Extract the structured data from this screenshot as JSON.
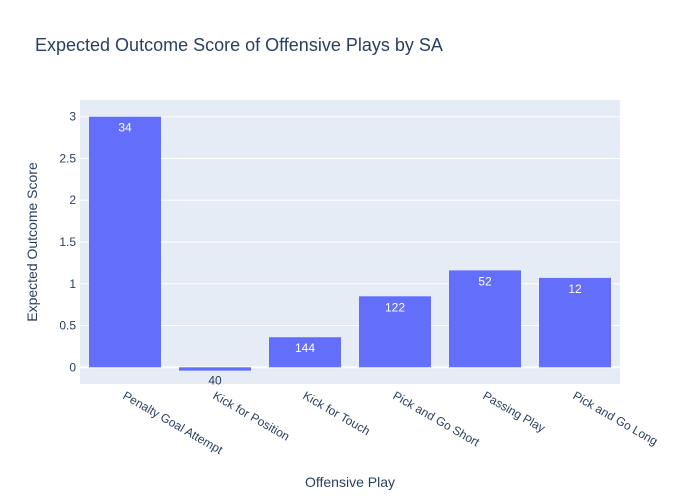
{
  "chart_data": {
    "type": "bar",
    "title": "Expected Outcome Score of Offensive Plays by SA",
    "xlabel": "Offensive Play",
    "ylabel": "Expected Outcome Score",
    "categories": [
      "Penalty Goal Attempt",
      "Kick for Position",
      "Kick for Touch",
      "Pick and Go Short",
      "Passing Play",
      "Pick and Go Long"
    ],
    "values": [
      3.0,
      -0.04,
      0.36,
      0.85,
      1.16,
      1.07
    ],
    "bar_labels": [
      "34",
      "40",
      "144",
      "122",
      "52",
      "12"
    ],
    "ylim": [
      -0.2,
      3.2
    ],
    "yticks": [
      0,
      0.5,
      1,
      1.5,
      2,
      2.5,
      3
    ],
    "ytick_labels": [
      "0",
      "0.5",
      "1",
      "1.5",
      "2",
      "2.5",
      "3"
    ],
    "grid": true,
    "colors": {
      "bar": "#636efa",
      "plot_bg": "#e5ecf6",
      "grid": "#ffffff",
      "text": "#2a3f5f"
    }
  }
}
